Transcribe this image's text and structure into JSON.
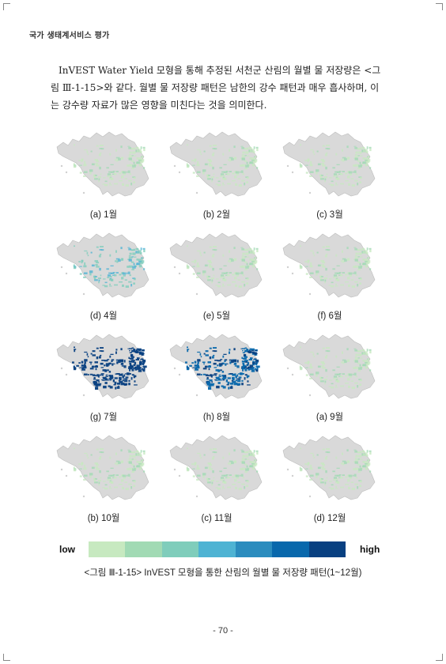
{
  "header": "국가 생태계서비스 평가",
  "paragraph": {
    "lines": [
      "InVEST Water Yield 모형을 통해 추정된 서천군 산림의 월별 물 저장량은 <그",
      "림 Ⅲ-1-15>와 같다. 월별 물 저장량 패턴은 남한의 강수 패턴과 매우 흡사하며, 이",
      "는 강수량 자료가 많은 영향을 미친다는 것을 의미한다."
    ]
  },
  "maps": [
    {
      "label": "(a) 1월",
      "level": 1
    },
    {
      "label": "(b) 2월",
      "level": 1
    },
    {
      "label": "(c) 3월",
      "level": 1
    },
    {
      "label": "(d) 4월",
      "level": 3
    },
    {
      "label": "(e) 5월",
      "level": 1
    },
    {
      "label": "(f) 6월",
      "level": 1
    },
    {
      "label": "(g) 7월",
      "level": 7
    },
    {
      "label": "(h) 8월",
      "level": 6
    },
    {
      "label": "(a) 9월",
      "level": 1
    },
    {
      "label": "(b) 10월",
      "level": 1
    },
    {
      "label": "(c) 11월",
      "level": 1
    },
    {
      "label": "(d) 12월",
      "level": 1
    }
  ],
  "legend": {
    "low": "low",
    "high": "high",
    "colors": [
      "#c7e9c0",
      "#a1dab4",
      "#7fcdbb",
      "#4eb3d3",
      "#2b8cbe",
      "#0868ac",
      "#084081"
    ]
  },
  "caption": "<그림 Ⅲ-1-15> InVEST 모형을 통한 산림의 월별 물 저장량 패턴(1~12월)",
  "page_number": "- 70 -"
}
